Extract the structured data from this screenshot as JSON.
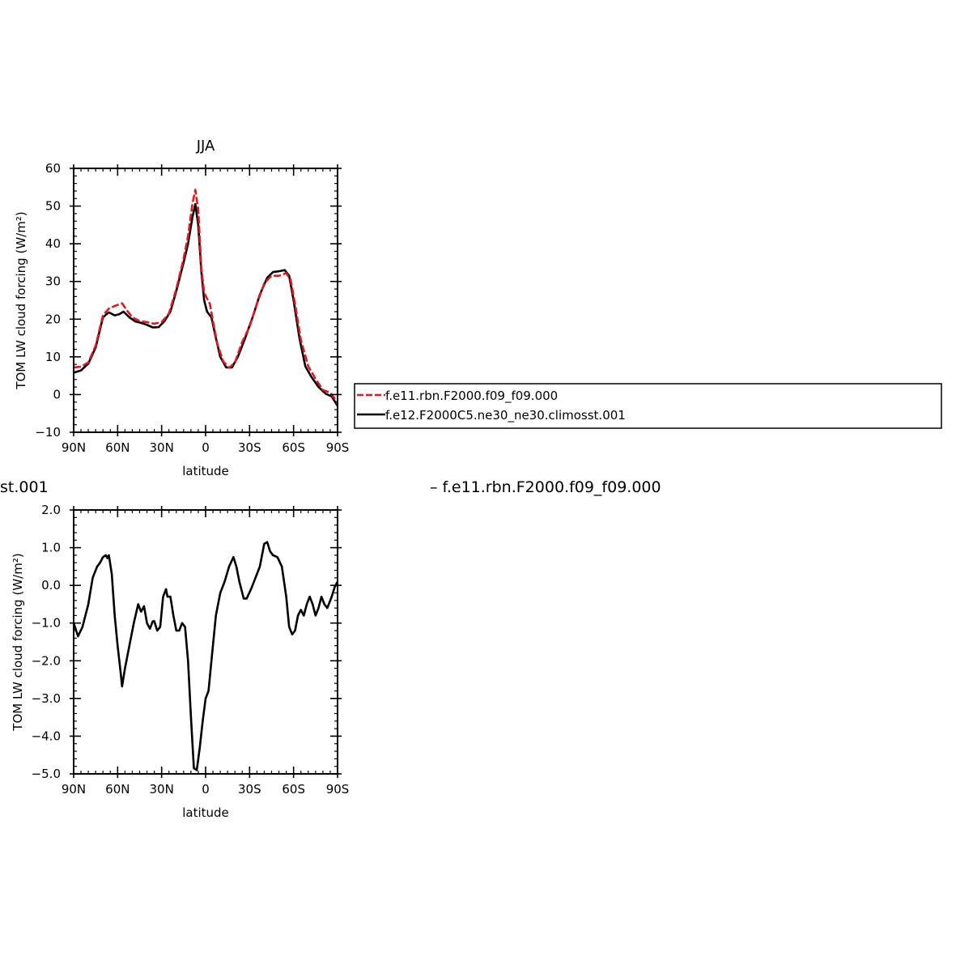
{
  "chart_data": [
    {
      "type": "line",
      "title": "JJA",
      "xlabel": "latitude",
      "ylabel": "TOM LW cloud forcing (W/m²)",
      "xlim": [
        -90,
        90
      ],
      "ylim": [
        -10,
        60
      ],
      "x_ticks": [
        {
          "v": -90,
          "label": "90N"
        },
        {
          "v": -60,
          "label": "60N"
        },
        {
          "v": -30,
          "label": "30N"
        },
        {
          "v": 0,
          "label": "0"
        },
        {
          "v": 30,
          "label": "30S"
        },
        {
          "v": 60,
          "label": "60S"
        },
        {
          "v": 90,
          "label": "90S"
        }
      ],
      "y_ticks": [
        {
          "v": -10,
          "label": "−10"
        },
        {
          "v": 0,
          "label": "0"
        },
        {
          "v": 10,
          "label": "10"
        },
        {
          "v": 20,
          "label": "20"
        },
        {
          "v": 30,
          "label": "30"
        },
        {
          "v": 40,
          "label": "40"
        },
        {
          "v": 50,
          "label": "50"
        },
        {
          "v": 60,
          "label": "60"
        }
      ],
      "series": [
        {
          "name": "f.e11.rbn.F2000.f09_f09.000",
          "color": "#e8141c",
          "dashed": true,
          "points": [
            [
              -90,
              7.2
            ],
            [
              -85,
              7.4
            ],
            [
              -80,
              8.5
            ],
            [
              -75,
              13
            ],
            [
              -70,
              21
            ],
            [
              -66,
              22.8
            ],
            [
              -62,
              23.5
            ],
            [
              -57,
              24.2
            ],
            [
              -54,
              22.5
            ],
            [
              -50,
              20.5
            ],
            [
              -45,
              19.5
            ],
            [
              -40,
              19.2
            ],
            [
              -35,
              18.8
            ],
            [
              -30,
              19.2
            ],
            [
              -25,
              21.5
            ],
            [
              -20,
              28
            ],
            [
              -15,
              36
            ],
            [
              -12,
              42
            ],
            [
              -9,
              50.5
            ],
            [
              -7,
              54.3
            ],
            [
              -5,
              49
            ],
            [
              -3,
              34
            ],
            [
              -1,
              27
            ],
            [
              1,
              25.5
            ],
            [
              3,
              24
            ],
            [
              5,
              19.5
            ],
            [
              8,
              13.5
            ],
            [
              12,
              8.8
            ],
            [
              16,
              7.1
            ],
            [
              20,
              8.5
            ],
            [
              25,
              14
            ],
            [
              30,
              18
            ],
            [
              35,
              24
            ],
            [
              40,
              29.5
            ],
            [
              45,
              31.5
            ],
            [
              50,
              31.5
            ],
            [
              55,
              32.2
            ],
            [
              58,
              30.5
            ],
            [
              61,
              24
            ],
            [
              65,
              14.5
            ],
            [
              70,
              7.5
            ],
            [
              75,
              4.2
            ],
            [
              80,
              1.2
            ],
            [
              85,
              0.5
            ],
            [
              88,
              -1
            ],
            [
              90,
              -2.5
            ]
          ]
        },
        {
          "name": "f.e12.F2000C5.ne30_ne30.climosst.001",
          "color": "#000000",
          "dashed": false,
          "points": [
            [
              -90,
              5.8
            ],
            [
              -85,
              6.4
            ],
            [
              -80,
              8.2
            ],
            [
              -75,
              12.5
            ],
            [
              -70,
              20.5
            ],
            [
              -66,
              21.8
            ],
            [
              -62,
              21
            ],
            [
              -59,
              21.3
            ],
            [
              -56,
              22
            ],
            [
              -52,
              20.5
            ],
            [
              -48,
              19.4
            ],
            [
              -44,
              19
            ],
            [
              -40,
              18.5
            ],
            [
              -36,
              17.8
            ],
            [
              -32,
              17.9
            ],
            [
              -28,
              19.5
            ],
            [
              -24,
              22
            ],
            [
              -20,
              27.5
            ],
            [
              -15,
              35
            ],
            [
              -12,
              40
            ],
            [
              -9,
              47
            ],
            [
              -7,
              50.5
            ],
            [
              -5,
              45
            ],
            [
              -3,
              33
            ],
            [
              -1,
              25
            ],
            [
              1,
              22
            ],
            [
              4,
              20.5
            ],
            [
              7,
              15
            ],
            [
              10,
              10
            ],
            [
              14,
              7.2
            ],
            [
              18,
              7.2
            ],
            [
              22,
              10
            ],
            [
              27,
              15
            ],
            [
              32,
              20.5
            ],
            [
              37,
              26.5
            ],
            [
              42,
              31
            ],
            [
              46,
              32.5
            ],
            [
              50,
              32.7
            ],
            [
              54,
              33
            ],
            [
              57,
              31.5
            ],
            [
              60,
              25
            ],
            [
              64,
              15
            ],
            [
              68,
              7.5
            ],
            [
              72,
              4.8
            ],
            [
              77,
              2
            ],
            [
              82,
              0.2
            ],
            [
              86,
              -0.5
            ],
            [
              90,
              -3
            ]
          ]
        }
      ],
      "legend": "right"
    },
    {
      "type": "line",
      "title": "",
      "xlabel": "latitude",
      "ylabel": "TOM LW cloud forcing (W/m²)",
      "xlim": [
        -90,
        90
      ],
      "ylim": [
        -5,
        2
      ],
      "x_ticks": [
        {
          "v": -90,
          "label": "90N"
        },
        {
          "v": -60,
          "label": "60N"
        },
        {
          "v": -30,
          "label": "30N"
        },
        {
          "v": 0,
          "label": "0"
        },
        {
          "v": 30,
          "label": "30S"
        },
        {
          "v": 60,
          "label": "60S"
        },
        {
          "v": 90,
          "label": "90S"
        }
      ],
      "y_ticks": [
        {
          "v": -5,
          "label": "−5.0"
        },
        {
          "v": -4,
          "label": "−4.0"
        },
        {
          "v": -3,
          "label": "−3.0"
        },
        {
          "v": -2,
          "label": "−2.0"
        },
        {
          "v": -1,
          "label": "−1.0"
        },
        {
          "v": 0,
          "label": "0.0"
        },
        {
          "v": 1,
          "label": "1.0"
        },
        {
          "v": 2,
          "label": "2.0"
        }
      ],
      "header_left": "st.001",
      "header_right": "–  f.e11.rbn.F2000.f09_f09.000",
      "series": [
        {
          "name": "",
          "color": "#000000",
          "dashed": false,
          "points": [
            [
              -90,
              -1
            ],
            [
              -87,
              -1.35
            ],
            [
              -84,
              -1.1
            ],
            [
              -80,
              -0.5
            ],
            [
              -77,
              0.2
            ],
            [
              -74,
              0.5
            ],
            [
              -72,
              0.6
            ],
            [
              -70,
              0.75
            ],
            [
              -68,
              0.8
            ],
            [
              -67,
              0.72
            ],
            [
              -66,
              0.8
            ],
            [
              -64,
              0.3
            ],
            [
              -62,
              -0.8
            ],
            [
              -60,
              -1.6
            ],
            [
              -58,
              -2.3
            ],
            [
              -57,
              -2.68
            ],
            [
              -55,
              -2.2
            ],
            [
              -52,
              -1.6
            ],
            [
              -49,
              -1
            ],
            [
              -46,
              -0.5
            ],
            [
              -44,
              -0.7
            ],
            [
              -42,
              -0.55
            ],
            [
              -40,
              -1
            ],
            [
              -38,
              -1.15
            ],
            [
              -36,
              -0.95
            ],
            [
              -35,
              -0.95
            ],
            [
              -33,
              -1.2
            ],
            [
              -31,
              -1.1
            ],
            [
              -29,
              -0.3
            ],
            [
              -27,
              -0.1
            ],
            [
              -26,
              -0.3
            ],
            [
              -24,
              -0.3
            ],
            [
              -22,
              -0.8
            ],
            [
              -20,
              -1.2
            ],
            [
              -18,
              -1.2
            ],
            [
              -16,
              -1
            ],
            [
              -14,
              -1.1
            ],
            [
              -12,
              -2
            ],
            [
              -10,
              -3.5
            ],
            [
              -8,
              -4.85
            ],
            [
              -6,
              -4.9
            ],
            [
              -4,
              -4.3
            ],
            [
              -2,
              -3.6
            ],
            [
              0,
              -3
            ],
            [
              2,
              -2.8
            ],
            [
              4,
              -2
            ],
            [
              7,
              -0.8
            ],
            [
              10,
              -0.2
            ],
            [
              13,
              0.1
            ],
            [
              16,
              0.5
            ],
            [
              19,
              0.75
            ],
            [
              21,
              0.5
            ],
            [
              23,
              0.1
            ],
            [
              26,
              -0.35
            ],
            [
              28,
              -0.35
            ],
            [
              31,
              -0.1
            ],
            [
              34,
              0.2
            ],
            [
              37,
              0.5
            ],
            [
              40,
              1.1
            ],
            [
              42,
              1.15
            ],
            [
              44,
              0.9
            ],
            [
              46,
              0.8
            ],
            [
              49,
              0.75
            ],
            [
              52,
              0.5
            ],
            [
              55,
              -0.3
            ],
            [
              57,
              -1.1
            ],
            [
              59,
              -1.3
            ],
            [
              61,
              -1.2
            ],
            [
              63,
              -0.8
            ],
            [
              65,
              -0.65
            ],
            [
              67,
              -0.8
            ],
            [
              69,
              -0.5
            ],
            [
              71,
              -0.3
            ],
            [
              73,
              -0.5
            ],
            [
              75,
              -0.8
            ],
            [
              77,
              -0.6
            ],
            [
              79,
              -0.3
            ],
            [
              81,
              -0.5
            ],
            [
              83,
              -0.6
            ],
            [
              86,
              -0.3
            ],
            [
              88,
              -0.05
            ],
            [
              90,
              0.1
            ]
          ]
        }
      ]
    }
  ]
}
